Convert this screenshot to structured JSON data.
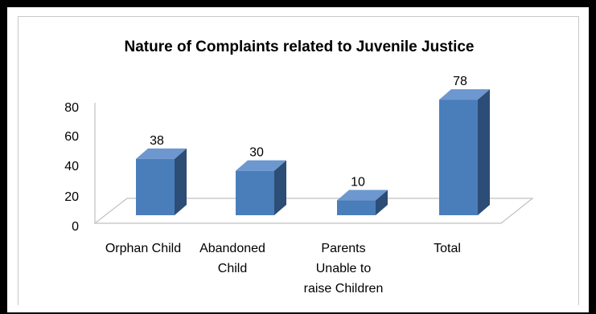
{
  "chart_data": {
    "type": "bar",
    "style": "3d-column",
    "title": "Nature of Complaints related to Juvenile Justice",
    "xlabel": "",
    "ylabel": "",
    "categories": [
      [
        "Orphan Child"
      ],
      [
        "Abandoned",
        "Child"
      ],
      [
        "Parents",
        "Unable to",
        "raise Children"
      ],
      [
        "Total"
      ]
    ],
    "values": [
      38,
      30,
      10,
      78
    ],
    "data_labels": [
      "38",
      "30",
      "10",
      "78"
    ],
    "ylim": [
      0,
      80
    ],
    "yticks": [
      "0",
      "20",
      "40",
      "60",
      "80"
    ],
    "grid": false,
    "legend": "none",
    "colors": {
      "bar_front": "#4a7ebb",
      "bar_side": "#2c4d75",
      "bar_top": "#6d97cf",
      "floor": "#ffffff",
      "floor_edge": "#c0c0c0",
      "frame": "#000000"
    }
  }
}
